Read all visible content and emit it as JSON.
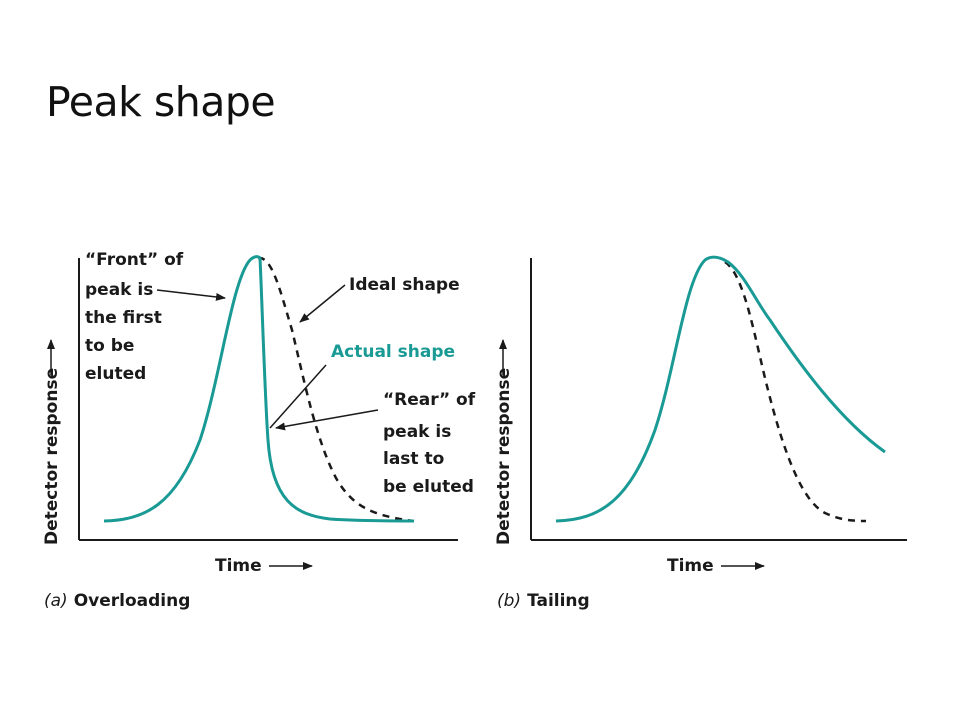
{
  "title": "Peak shape",
  "colors": {
    "actual": "#1a9a95",
    "ideal": "#1a1a1a",
    "text": "#1a1a1a"
  },
  "panel_a": {
    "ylabel": "Detector response",
    "xlabel": "Time",
    "caption_letter": "(a)",
    "caption_text": "Overloading",
    "front_note": [
      "“Front” of",
      "peak is",
      "the first",
      "to be",
      "eluted"
    ],
    "ideal_label": "Ideal shape",
    "actual_label": "Actual shape",
    "rear_note": [
      "“Rear” of",
      "peak is",
      "last to",
      "be eluted"
    ]
  },
  "panel_b": {
    "ylabel": "Detector response",
    "xlabel": "Time",
    "caption_letter": "(b)",
    "caption_text": "Tailing"
  }
}
